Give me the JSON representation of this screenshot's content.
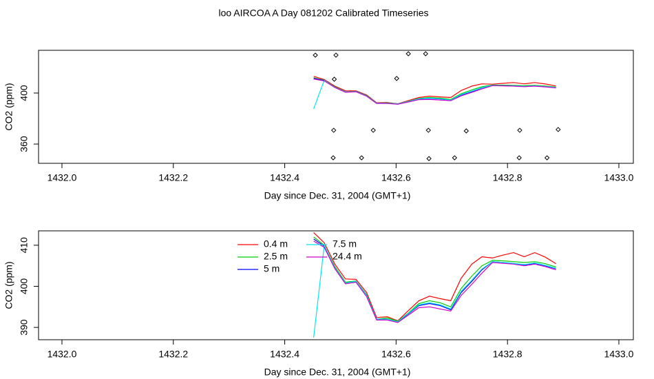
{
  "title": "loo AIRCOA A  Day 081202  Calibrated Timeseries",
  "chart_data": [
    {
      "type": "line",
      "ylabel": "CO2 (ppm)",
      "xlabel": "Day since Dec. 31, 2004 (GMT+1)",
      "xlim": [
        1431.958,
        1433.026
      ],
      "ylim": [
        344.9,
        433.5
      ],
      "xticks": [
        {
          "value": 1432,
          "label": "1432.0"
        },
        1432.2,
        1432.4,
        1432.6,
        1432.8,
        {
          "value": 1433,
          "label": "1433.0"
        }
      ],
      "yticks": [
        360,
        400
      ],
      "x": [
        1432.452,
        1432.471,
        1432.49,
        1432.509,
        1432.528,
        1432.547,
        1432.565,
        1432.584,
        1432.603,
        1432.622,
        1432.641,
        1432.66,
        1432.679,
        1432.698,
        1432.717,
        1432.736,
        1432.754,
        1432.773,
        1432.792,
        1432.811,
        1432.83,
        1432.849,
        1432.868,
        1432.887
      ],
      "series": [
        {
          "color": "#ff0000",
          "values": [
            413.1,
            410.6,
            405.4,
            401.8,
            401.7,
            398.5,
            392.4,
            392.6,
            391.6,
            394.1,
            396.5,
            397.6,
            397.0,
            396.5,
            402.0,
            405.4,
            407.2,
            406.9,
            407.6,
            408.2,
            407.2,
            408.2,
            407.1,
            405.5
          ]
        },
        {
          "color": "#00cd00",
          "values": [
            412.0,
            410.0,
            404.8,
            401.0,
            401.3,
            398.0,
            392.0,
            392.3,
            391.5,
            393.5,
            395.8,
            396.5,
            396.0,
            395.0,
            399.5,
            402.5,
            405.0,
            406.3,
            406.2,
            406.0,
            405.8,
            406.0,
            405.5,
            404.7
          ]
        },
        {
          "color": "#0000ff",
          "values": [
            411.5,
            409.8,
            404.5,
            400.8,
            401.2,
            397.8,
            392.0,
            392.0,
            391.3,
            393.3,
            395.3,
            395.8,
            395.3,
            394.3,
            398.5,
            401.2,
            404.0,
            406.0,
            405.8,
            405.6,
            405.2,
            405.6,
            405.0,
            404.3
          ]
        },
        {
          "color": "#00e5ee",
          "values": [
            387.5,
            410.0,
            404.5,
            400.8,
            401.2,
            397.8,
            392.0,
            392.0,
            391.4,
            393.4,
            395.5,
            396.0,
            395.5,
            394.5,
            398.8,
            401.5,
            404.2,
            406.0,
            405.8,
            405.6,
            405.3,
            405.7,
            405.1,
            404.4
          ]
        },
        {
          "color": "#cd00cd",
          "values": [
            411.0,
            409.5,
            404.3,
            400.6,
            401.0,
            397.5,
            391.8,
            391.8,
            391.2,
            393.0,
            394.8,
            395.0,
            394.5,
            394.0,
            397.8,
            400.5,
            403.2,
            405.8,
            405.6,
            405.4,
            405.0,
            405.4,
            404.8,
            404.0
          ]
        }
      ],
      "points": {
        "x": [
          1432.455,
          1432.492,
          1432.622,
          1432.653,
          1432.489,
          1432.601,
          1432.488,
          1432.559,
          1432.658,
          1432.726,
          1432.822,
          1432.891,
          1432.487,
          1432.538,
          1432.659,
          1432.705,
          1432.821,
          1432.871
        ],
        "y": [
          429.7,
          429.7,
          430.8,
          430.8,
          410.8,
          411.4,
          370.8,
          370.8,
          370.8,
          370.3,
          370.8,
          371.4,
          349.2,
          349.2,
          348.6,
          349.2,
          349.2,
          349.2
        ]
      }
    },
    {
      "type": "line",
      "ylabel": "CO2 (ppm)",
      "xlabel": "Day since Dec. 31, 2004 (GMT+1)",
      "xlim": [
        1431.958,
        1433.026
      ],
      "ylim": [
        387.0,
        413.5
      ],
      "xticks": [
        {
          "value": 1432,
          "label": "1432.0"
        },
        1432.2,
        1432.4,
        1432.6,
        1432.8,
        {
          "value": 1433,
          "label": "1433.0"
        }
      ],
      "yticks": [
        390,
        400,
        410
      ],
      "legend": "top-center",
      "x": [
        1432.452,
        1432.471,
        1432.49,
        1432.509,
        1432.528,
        1432.547,
        1432.565,
        1432.584,
        1432.603,
        1432.622,
        1432.641,
        1432.66,
        1432.679,
        1432.698,
        1432.717,
        1432.736,
        1432.754,
        1432.773,
        1432.792,
        1432.811,
        1432.83,
        1432.849,
        1432.868,
        1432.887
      ],
      "series": [
        {
          "name": "0.4 m",
          "color": "#ff0000",
          "values": [
            413.1,
            410.6,
            405.4,
            401.8,
            401.7,
            398.5,
            392.4,
            392.6,
            391.6,
            394.1,
            396.5,
            397.6,
            397.0,
            396.5,
            402.0,
            405.4,
            407.2,
            406.9,
            407.6,
            408.2,
            407.2,
            408.2,
            407.1,
            405.5
          ]
        },
        {
          "name": "2.5 m",
          "color": "#00cd00",
          "values": [
            412.0,
            410.0,
            404.8,
            401.0,
            401.3,
            398.0,
            392.0,
            392.3,
            391.5,
            393.5,
            395.8,
            396.5,
            396.0,
            395.0,
            399.5,
            402.5,
            405.0,
            406.3,
            406.2,
            406.0,
            405.8,
            406.0,
            405.5,
            404.7
          ]
        },
        {
          "name": "5 m",
          "color": "#0000ff",
          "values": [
            411.5,
            409.8,
            404.5,
            400.8,
            401.2,
            397.8,
            392.0,
            392.0,
            391.3,
            393.3,
            395.3,
            395.8,
            395.3,
            394.3,
            398.5,
            401.2,
            404.0,
            406.0,
            405.8,
            405.6,
            405.2,
            405.6,
            405.0,
            404.3
          ]
        },
        {
          "name": "7.5 m",
          "color": "#00e5ee",
          "values": [
            387.5,
            410.0,
            404.5,
            400.8,
            401.2,
            397.8,
            392.0,
            392.0,
            391.4,
            393.4,
            395.5,
            396.0,
            395.5,
            394.5,
            398.8,
            401.5,
            404.2,
            406.0,
            405.8,
            405.6,
            405.3,
            405.7,
            405.1,
            404.4
          ]
        },
        {
          "name": "24.4 m",
          "color": "#cd00cd",
          "values": [
            411.0,
            409.5,
            404.3,
            400.6,
            401.0,
            397.5,
            391.8,
            391.8,
            391.2,
            393.0,
            394.8,
            395.0,
            394.5,
            394.0,
            397.8,
            400.5,
            403.2,
            405.8,
            405.6,
            405.4,
            405.0,
            405.4,
            404.8,
            404.0
          ]
        }
      ]
    }
  ]
}
